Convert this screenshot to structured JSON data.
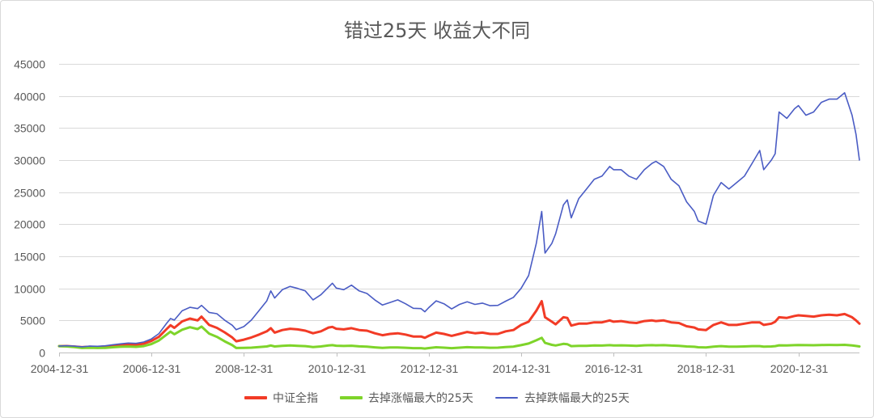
{
  "chart_data": {
    "type": "line",
    "title": "错过25天 收益大不同",
    "xlabel": "",
    "ylabel": "",
    "ylim": [
      0,
      45000
    ],
    "xlim": [
      "2004-12-31",
      "2022-04-27"
    ],
    "y_ticks": [
      0,
      5000,
      10000,
      15000,
      20000,
      25000,
      30000,
      35000,
      40000,
      45000
    ],
    "x_ticks": [
      "2004-12-31",
      "2006-12-31",
      "2008-12-31",
      "2010-12-31",
      "2012-12-31",
      "2014-12-31",
      "2016-12-31",
      "2018-12-31",
      "2020-12-31"
    ],
    "grid": true,
    "legend_position": "bottom",
    "x": [
      "2004-12-31",
      "2005-02-28",
      "2005-04-30",
      "2005-06-30",
      "2005-08-31",
      "2005-10-31",
      "2005-12-31",
      "2006-02-28",
      "2006-04-30",
      "2006-06-30",
      "2006-08-31",
      "2006-10-31",
      "2006-12-31",
      "2007-02-28",
      "2007-04-30",
      "2007-05-31",
      "2007-06-30",
      "2007-08-31",
      "2007-10-31",
      "2007-12-31",
      "2008-01-31",
      "2008-03-31",
      "2008-05-31",
      "2008-07-31",
      "2008-09-30",
      "2008-10-31",
      "2008-12-31",
      "2009-02-28",
      "2009-04-30",
      "2009-06-30",
      "2009-07-31",
      "2009-08-31",
      "2009-10-31",
      "2009-12-31",
      "2010-02-28",
      "2010-04-30",
      "2010-06-30",
      "2010-08-31",
      "2010-10-31",
      "2010-11-30",
      "2010-12-31",
      "2011-02-28",
      "2011-04-30",
      "2011-06-30",
      "2011-08-31",
      "2011-10-31",
      "2011-12-31",
      "2012-02-29",
      "2012-04-30",
      "2012-06-30",
      "2012-08-31",
      "2012-10-31",
      "2012-11-30",
      "2012-12-31",
      "2013-02-28",
      "2013-04-30",
      "2013-06-30",
      "2013-08-31",
      "2013-10-31",
      "2013-12-31",
      "2014-02-28",
      "2014-04-30",
      "2014-06-30",
      "2014-08-31",
      "2014-10-31",
      "2014-12-31",
      "2015-02-28",
      "2015-04-30",
      "2015-06-12",
      "2015-07-08",
      "2015-08-31",
      "2015-09-30",
      "2015-11-30",
      "2015-12-31",
      "2016-01-31",
      "2016-03-31",
      "2016-05-31",
      "2016-07-31",
      "2016-09-30",
      "2016-11-30",
      "2016-12-31",
      "2017-02-28",
      "2017-04-30",
      "2017-06-30",
      "2017-08-31",
      "2017-10-31",
      "2017-11-30",
      "2018-01-31",
      "2018-03-31",
      "2018-05-31",
      "2018-07-31",
      "2018-09-30",
      "2018-10-31",
      "2018-12-31",
      "2019-02-28",
      "2019-04-30",
      "2019-06-30",
      "2019-08-31",
      "2019-10-31",
      "2019-12-31",
      "2020-02-29",
      "2020-03-31",
      "2020-05-31",
      "2020-06-30",
      "2020-07-31",
      "2020-09-30",
      "2020-11-30",
      "2020-12-31",
      "2021-02-28",
      "2021-04-30",
      "2021-06-30",
      "2021-08-31",
      "2021-10-31",
      "2021-12-31",
      "2022-02-28",
      "2022-03-31",
      "2022-04-27"
    ],
    "series": [
      {
        "name": "中证全指",
        "color": "#f23b26",
        "values": [
          1000,
          1010,
          930,
          830,
          900,
          860,
          920,
          1060,
          1180,
          1270,
          1200,
          1380,
          1800,
          2450,
          3650,
          4250,
          3850,
          4850,
          5300,
          5000,
          5600,
          4300,
          3850,
          3150,
          2350,
          1750,
          2000,
          2350,
          2800,
          3300,
          3800,
          3100,
          3500,
          3700,
          3600,
          3400,
          3000,
          3300,
          3900,
          4000,
          3700,
          3600,
          3800,
          3500,
          3400,
          3000,
          2700,
          2900,
          3000,
          2800,
          2500,
          2500,
          2300,
          2600,
          3100,
          2900,
          2600,
          2900,
          3200,
          3000,
          3100,
          2900,
          2900,
          3300,
          3500,
          4300,
          4800,
          6500,
          8000,
          5500,
          4800,
          4400,
          5500,
          5400,
          4200,
          4500,
          4500,
          4700,
          4700,
          5000,
          4800,
          4900,
          4700,
          4600,
          4900,
          5000,
          4900,
          5000,
          4700,
          4600,
          4100,
          3900,
          3600,
          3500,
          4300,
          4700,
          4300,
          4300,
          4500,
          4700,
          4700,
          4300,
          4500,
          4800,
          5500,
          5400,
          5700,
          5800,
          5700,
          5600,
          5800,
          5900,
          5800,
          6000,
          5500,
          5000,
          4500
        ]
      },
      {
        "name": "去掉涨幅最大的25天",
        "color": "#7ed42a",
        "values": [
          1000,
          950,
          840,
          700,
          740,
          700,
          730,
          820,
          890,
          930,
          880,
          990,
          1320,
          1880,
          2800,
          3250,
          2850,
          3550,
          3950,
          3650,
          4050,
          2950,
          2450,
          1750,
          1150,
          700,
          720,
          760,
          850,
          950,
          1100,
          950,
          1050,
          1100,
          1050,
          1000,
          860,
          950,
          1100,
          1150,
          1060,
          1020,
          1060,
          960,
          920,
          810,
          720,
          780,
          800,
          750,
          680,
          680,
          620,
          690,
          820,
          760,
          680,
          760,
          830,
          790,
          800,
          750,
          760,
          860,
          920,
          1150,
          1400,
          1900,
          2300,
          1500,
          1200,
          1100,
          1350,
          1300,
          1000,
          1050,
          1050,
          1100,
          1080,
          1150,
          1100,
          1120,
          1080,
          1050,
          1120,
          1150,
          1120,
          1150,
          1080,
          1050,
          940,
          890,
          820,
          800,
          920,
          990,
          910,
          910,
          950,
          990,
          990,
          920,
          950,
          1000,
          1120,
          1100,
          1150,
          1170,
          1150,
          1130,
          1170,
          1190,
          1170,
          1200,
          1100,
          1020,
          950
        ]
      },
      {
        "name": "去掉跌幅最大的25天",
        "color": "#4a5cc4",
        "values": [
          1000,
          1060,
          990,
          900,
          1000,
          970,
          1050,
          1210,
          1350,
          1470,
          1420,
          1640,
          2120,
          2950,
          4550,
          5300,
          5050,
          6500,
          7050,
          6850,
          7350,
          6250,
          6050,
          5050,
          4250,
          3550,
          4050,
          5050,
          6550,
          8050,
          9600,
          8500,
          9800,
          10300,
          10000,
          9600,
          8200,
          9000,
          10200,
          10800,
          10050,
          9800,
          10500,
          9600,
          9200,
          8200,
          7400,
          7800,
          8200,
          7600,
          6900,
          6850,
          6350,
          7000,
          8050,
          7600,
          6800,
          7500,
          7900,
          7500,
          7700,
          7300,
          7350,
          8000,
          8600,
          10000,
          12000,
          17000,
          22000,
          15500,
          17000,
          18500,
          23000,
          23800,
          21000,
          24000,
          25500,
          27000,
          27500,
          29000,
          28500,
          28500,
          27500,
          27000,
          28500,
          29500,
          29800,
          29000,
          27000,
          26000,
          23500,
          22000,
          20500,
          20000,
          24500,
          26500,
          25500,
          26500,
          27500,
          29500,
          31500,
          28500,
          30000,
          31000,
          37500,
          36500,
          38000,
          38500,
          37000,
          37500,
          39000,
          39500,
          39500,
          40500,
          37000,
          34000,
          30000
        ]
      }
    ]
  }
}
